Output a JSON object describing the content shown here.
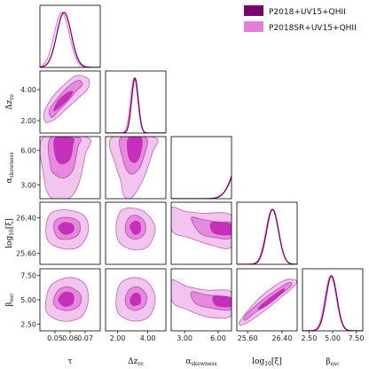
{
  "chart_data": {
    "type": "corner",
    "title": "",
    "parameters": [
      {
        "key": "tau",
        "label": "τ",
        "range": [
          0.04,
          0.08
        ],
        "ticks": [
          0.05,
          0.06,
          0.07
        ],
        "tick_labels": [
          "0.05",
          "0.06",
          "0.07"
        ]
      },
      {
        "key": "dz",
        "label": "Δz",
        "label_sub": "re",
        "range": [
          1.2,
          5.2
        ],
        "ticks": [
          2.0,
          4.0
        ],
        "tick_labels": [
          "2.00",
          "4.00"
        ]
      },
      {
        "key": "askew",
        "label": "α",
        "label_sub": "skewness",
        "range": [
          1.8,
          7.2
        ],
        "ticks": [
          3.0,
          6.0
        ],
        "tick_labels": [
          "3.00",
          "6.00"
        ]
      },
      {
        "key": "logxi",
        "label": "log",
        "label_sub": "10",
        "label_suffix": "[ξ]",
        "range": [
          25.35,
          26.75
        ],
        "ticks": [
          25.6,
          26.4
        ],
        "tick_labels": [
          "25.60",
          "26.40"
        ]
      },
      {
        "key": "besc",
        "label": "β",
        "label_sub": "esc",
        "range": [
          1.8,
          8.2
        ],
        "ticks": [
          2.5,
          5.0,
          7.5
        ],
        "tick_labels": [
          "2.50",
          "5.00",
          "7.50"
        ]
      }
    ],
    "series": [
      {
        "name": "P2018+UV15+QHII",
        "color": "#7a0070",
        "marginals": [
          {
            "mean": 0.056,
            "sd": 0.0048
          },
          {
            "mean": 3.15,
            "sd": 0.22
          },
          {
            "mean": 8.4,
            "sd": 0.9
          },
          {
            "mean": 26.18,
            "sd": 0.14
          },
          {
            "mean": 4.88,
            "sd": 0.58
          }
        ]
      },
      {
        "name": "P2018SR+UV15+QHII",
        "color": "#e37fd9",
        "marginals": [
          {
            "mean": 0.0545,
            "sd": 0.005
          },
          {
            "mean": 3.1,
            "sd": 0.24
          },
          {
            "mean": 8.6,
            "sd": 1.0
          },
          {
            "mean": 26.17,
            "sd": 0.145
          },
          {
            "mean": 4.8,
            "sd": 0.6
          }
        ]
      }
    ],
    "contours": {
      "dz|tau": {
        "outer68": [
          [
            0.048,
            2.2
          ],
          [
            0.052,
            2.6
          ],
          [
            0.058,
            3.2
          ],
          [
            0.064,
            3.9
          ],
          [
            0.068,
            4.3
          ],
          [
            0.066,
            4.6
          ],
          [
            0.06,
            4.3
          ],
          [
            0.054,
            3.7
          ],
          [
            0.049,
            3.1
          ],
          [
            0.046,
            2.6
          ]
        ],
        "outer95": [
          [
            0.044,
            1.9
          ],
          [
            0.05,
            2.1
          ],
          [
            0.058,
            2.8
          ],
          [
            0.066,
            3.5
          ],
          [
            0.072,
            4.1
          ],
          [
            0.072,
            4.7
          ],
          [
            0.064,
            4.9
          ],
          [
            0.056,
            4.3
          ],
          [
            0.049,
            3.6
          ],
          [
            0.043,
            2.6
          ]
        ],
        "inner68": [
          [
            0.049,
            2.6
          ],
          [
            0.055,
            3.0
          ],
          [
            0.06,
            3.5
          ],
          [
            0.062,
            3.9
          ],
          [
            0.058,
            3.8
          ],
          [
            0.052,
            3.3
          ]
        ]
      },
      "askew|tau": {
        "outer68": [
          [
            0.047,
            7.1
          ],
          [
            0.047,
            4.6
          ],
          [
            0.05,
            3.9
          ],
          [
            0.056,
            3.6
          ],
          [
            0.062,
            4.3
          ],
          [
            0.065,
            6.2
          ],
          [
            0.066,
            7.1
          ]
        ],
        "outer95": [
          [
            0.042,
            7.1
          ],
          [
            0.043,
            3.4
          ],
          [
            0.046,
            2.1
          ],
          [
            0.05,
            1.8
          ],
          [
            0.06,
            1.9
          ],
          [
            0.066,
            3.2
          ],
          [
            0.07,
            5.6
          ],
          [
            0.072,
            7.1
          ]
        ],
        "inner68": [
          [
            0.05,
            7.1
          ],
          [
            0.05,
            5.5
          ],
          [
            0.054,
            4.8
          ],
          [
            0.06,
            5.2
          ],
          [
            0.062,
            6.4
          ],
          [
            0.062,
            7.1
          ]
        ]
      },
      "askew|dz": {
        "outer68": [
          [
            2.2,
            7.1
          ],
          [
            2.4,
            5.0
          ],
          [
            2.8,
            4.0
          ],
          [
            3.3,
            4.2
          ],
          [
            3.7,
            5.3
          ],
          [
            3.9,
            7.1
          ]
        ],
        "outer95": [
          [
            1.6,
            7.1
          ],
          [
            1.9,
            4.6
          ],
          [
            2.2,
            3.4
          ],
          [
            2.4,
            2.1
          ],
          [
            2.8,
            1.8
          ],
          [
            3.2,
            2.3
          ],
          [
            3.8,
            3.8
          ],
          [
            4.3,
            5.8
          ],
          [
            4.5,
            7.1
          ]
        ],
        "inner68": [
          [
            2.7,
            7.1
          ],
          [
            2.7,
            5.5
          ],
          [
            3.1,
            4.9
          ],
          [
            3.5,
            5.5
          ],
          [
            3.6,
            7.1
          ]
        ]
      },
      "logxi|tau": {
        "outer68": [
          [
            0.049,
            26.2
          ],
          [
            0.052,
            26.38
          ],
          [
            0.06,
            26.4
          ],
          [
            0.066,
            26.3
          ],
          [
            0.066,
            26.05
          ],
          [
            0.06,
            25.92
          ],
          [
            0.052,
            25.95
          ]
        ],
        "outer95": [
          [
            0.044,
            26.2
          ],
          [
            0.048,
            26.52
          ],
          [
            0.06,
            26.57
          ],
          [
            0.07,
            26.42
          ],
          [
            0.072,
            26.08
          ],
          [
            0.066,
            25.75
          ],
          [
            0.056,
            25.7
          ],
          [
            0.046,
            25.85
          ]
        ],
        "inner68": [
          [
            0.052,
            26.18
          ],
          [
            0.056,
            26.3
          ],
          [
            0.062,
            26.25
          ],
          [
            0.062,
            26.08
          ],
          [
            0.056,
            26.02
          ]
        ]
      },
      "logxi|dz": {
        "outer68": [
          [
            2.5,
            26.2
          ],
          [
            2.8,
            26.42
          ],
          [
            3.3,
            26.45
          ],
          [
            3.8,
            26.3
          ],
          [
            3.8,
            26.05
          ],
          [
            3.3,
            25.92
          ],
          [
            2.7,
            25.98
          ]
        ],
        "outer95": [
          [
            1.9,
            26.2
          ],
          [
            2.2,
            26.55
          ],
          [
            3.0,
            26.62
          ],
          [
            3.9,
            26.5
          ],
          [
            4.5,
            26.15
          ],
          [
            4.0,
            25.75
          ],
          [
            3.0,
            25.68
          ],
          [
            2.1,
            25.85
          ]
        ],
        "inner68": [
          [
            2.8,
            26.2
          ],
          [
            3.1,
            26.33
          ],
          [
            3.5,
            26.28
          ],
          [
            3.5,
            26.08
          ],
          [
            3.1,
            26.02
          ]
        ]
      },
      "logxi|askew": {
        "outer68": [
          [
            3.6,
            26.4
          ],
          [
            4.8,
            26.35
          ],
          [
            6.2,
            26.3
          ],
          [
            7.2,
            26.28
          ],
          [
            7.2,
            25.95
          ],
          [
            5.8,
            25.95
          ],
          [
            4.4,
            26.05
          ]
        ],
        "outer95": [
          [
            1.8,
            26.62
          ],
          [
            3.0,
            26.55
          ],
          [
            4.6,
            26.5
          ],
          [
            7.2,
            26.45
          ],
          [
            7.2,
            25.75
          ],
          [
            5.4,
            25.78
          ],
          [
            3.4,
            25.95
          ],
          [
            1.9,
            26.1
          ]
        ],
        "inner68": [
          [
            5.4,
            26.3
          ],
          [
            7.2,
            26.26
          ],
          [
            7.2,
            26.02
          ],
          [
            5.6,
            26.05
          ]
        ]
      },
      "besc|tau": {
        "outer68": [
          [
            0.049,
            5.0
          ],
          [
            0.053,
            6.1
          ],
          [
            0.06,
            6.3
          ],
          [
            0.067,
            5.5
          ],
          [
            0.066,
            4.4
          ],
          [
            0.059,
            3.9
          ],
          [
            0.051,
            4.2
          ]
        ],
        "outer95": [
          [
            0.044,
            5.0
          ],
          [
            0.048,
            6.6
          ],
          [
            0.06,
            7.3
          ],
          [
            0.07,
            6.6
          ],
          [
            0.072,
            4.8
          ],
          [
            0.067,
            3.2
          ],
          [
            0.055,
            2.8
          ],
          [
            0.045,
            3.6
          ]
        ],
        "inner68": [
          [
            0.052,
            5.0
          ],
          [
            0.056,
            5.8
          ],
          [
            0.062,
            5.6
          ],
          [
            0.062,
            4.6
          ],
          [
            0.056,
            4.3
          ]
        ]
      },
      "besc|dz": {
        "outer68": [
          [
            2.5,
            5.0
          ],
          [
            2.8,
            6.1
          ],
          [
            3.4,
            6.3
          ],
          [
            3.9,
            5.5
          ],
          [
            3.8,
            4.4
          ],
          [
            3.2,
            3.9
          ],
          [
            2.7,
            4.2
          ]
        ],
        "outer95": [
          [
            1.9,
            5.0
          ],
          [
            2.2,
            6.7
          ],
          [
            3.1,
            7.3
          ],
          [
            4.0,
            6.8
          ],
          [
            4.5,
            5.2
          ],
          [
            4.1,
            3.3
          ],
          [
            3.1,
            2.8
          ],
          [
            2.1,
            3.5
          ]
        ],
        "inner68": [
          [
            2.8,
            5.0
          ],
          [
            3.1,
            5.7
          ],
          [
            3.5,
            5.5
          ],
          [
            3.5,
            4.6
          ],
          [
            3.0,
            4.4
          ]
        ]
      },
      "besc|askew": {
        "outer68": [
          [
            3.6,
            5.8
          ],
          [
            5.0,
            5.5
          ],
          [
            7.2,
            5.2
          ],
          [
            7.2,
            4.0
          ],
          [
            5.6,
            4.1
          ],
          [
            4.0,
            4.6
          ]
        ],
        "outer95": [
          [
            1.8,
            7.0
          ],
          [
            3.2,
            6.4
          ],
          [
            5.0,
            6.0
          ],
          [
            7.2,
            5.8
          ],
          [
            7.2,
            3.4
          ],
          [
            5.2,
            3.2
          ],
          [
            3.2,
            4.0
          ],
          [
            1.9,
            4.8
          ]
        ],
        "inner68": [
          [
            5.6,
            5.4
          ],
          [
            7.2,
            5.2
          ],
          [
            7.2,
            4.3
          ],
          [
            5.8,
            4.4
          ]
        ]
      },
      "besc|logxi": {
        "outer68": [
          [
            25.55,
            2.9
          ],
          [
            25.75,
            3.6
          ],
          [
            26.2,
            5.0
          ],
          [
            26.6,
            6.4
          ],
          [
            26.58,
            6.8
          ],
          [
            26.4,
            6.4
          ],
          [
            25.95,
            5.0
          ],
          [
            25.55,
            3.4
          ]
        ],
        "outer95": [
          [
            25.45,
            2.4
          ],
          [
            25.75,
            3.1
          ],
          [
            26.25,
            4.8
          ],
          [
            26.72,
            6.6
          ],
          [
            26.66,
            7.1
          ],
          [
            26.4,
            6.9
          ],
          [
            25.9,
            5.3
          ],
          [
            25.45,
            3.0
          ]
        ],
        "inner68": [
          [
            25.9,
            4.0
          ],
          [
            26.15,
            4.7
          ],
          [
            26.45,
            5.9
          ],
          [
            26.4,
            6.1
          ],
          [
            26.05,
            5.0
          ],
          [
            25.85,
            4.2
          ]
        ]
      }
    },
    "legend_placement": "top-right",
    "grid": false
  }
}
